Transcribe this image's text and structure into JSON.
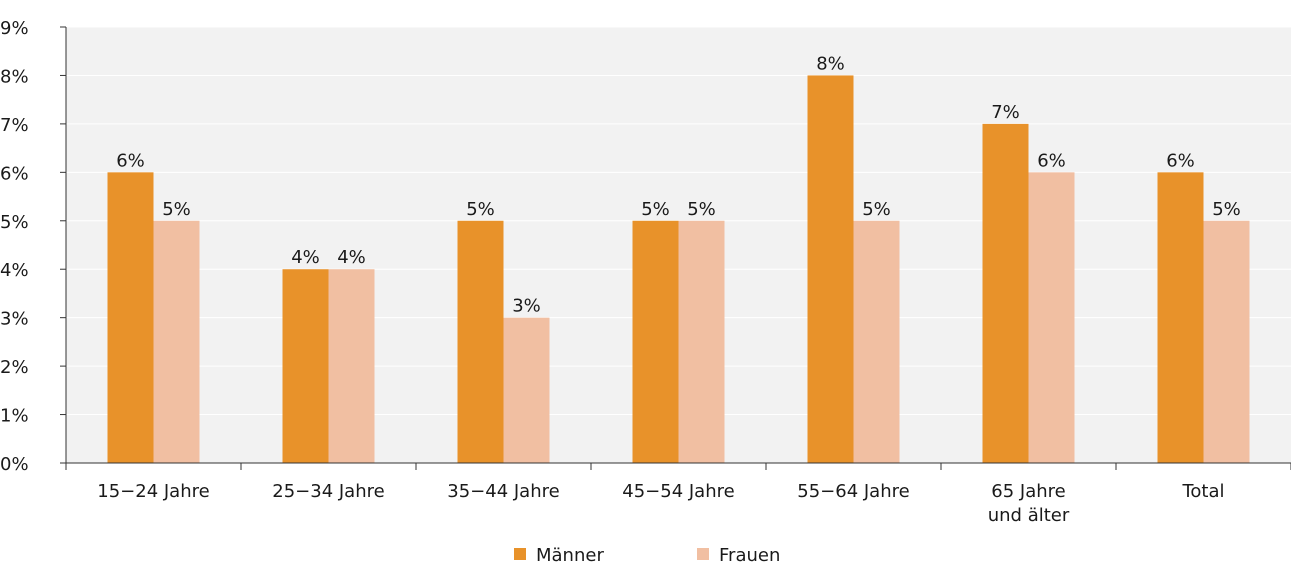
{
  "chart_data": {
    "type": "bar",
    "categories": [
      [
        "15−24 Jahre"
      ],
      [
        "25−34 Jahre"
      ],
      [
        "35−44 Jahre"
      ],
      [
        "45−54 Jahre"
      ],
      [
        "55−64 Jahre"
      ],
      [
        "65 Jahre",
        "und älter"
      ],
      [
        "Total"
      ]
    ],
    "series": [
      {
        "name": "Männer",
        "color": "#e8922a",
        "values": [
          6,
          4,
          5,
          5,
          8,
          7,
          6
        ]
      },
      {
        "name": "Frauen",
        "color": "#f1bfa2",
        "values": [
          5,
          4,
          3,
          5,
          5,
          6,
          5
        ]
      }
    ],
    "value_suffix": "%",
    "ylim": [
      0,
      9
    ],
    "yticks": [
      0,
      1,
      2,
      3,
      4,
      5,
      6,
      7,
      8,
      9
    ],
    "grid": true,
    "plot_background": "#f2f2f2",
    "legend_position": "bottom-center"
  }
}
